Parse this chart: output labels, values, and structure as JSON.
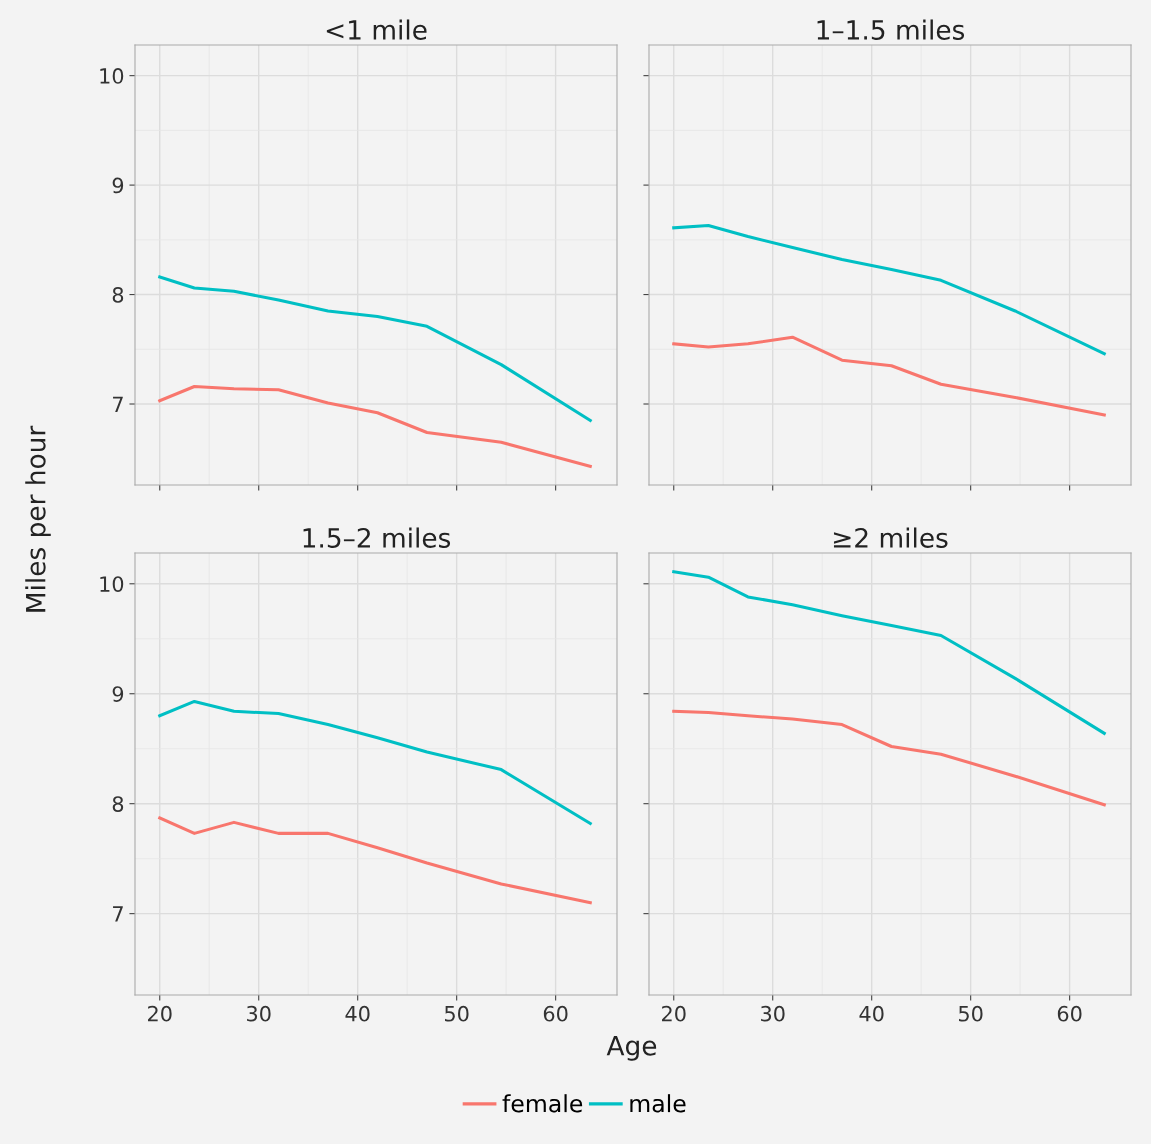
{
  "chart_data": [
    {
      "type": "line",
      "title": "<1 mile",
      "ylabel": "Miles per hour",
      "legend": "bottom",
      "grid": true,
      "tick_labels": "y",
      "xlim": [
        17.5,
        66.2
      ],
      "ylim": [
        6.26,
        10.28
      ],
      "xticks": [
        20,
        30,
        40,
        50,
        60
      ],
      "yticks": [
        7,
        8,
        9,
        10
      ],
      "x": [
        20,
        23.5,
        27.5,
        32,
        37,
        42,
        47,
        54.5,
        63.5
      ],
      "series": [
        {
          "name": "female",
          "color": "#f8766d",
          "values": [
            7.03,
            7.16,
            7.14,
            7.13,
            7.01,
            6.92,
            6.74,
            6.65,
            6.43
          ]
        },
        {
          "name": "male",
          "color": "#00bfc4",
          "values": [
            8.16,
            8.06,
            8.03,
            7.95,
            7.85,
            7.8,
            7.71,
            7.36,
            6.85
          ]
        }
      ]
    },
    {
      "type": "line",
      "title": "1–1.5 miles",
      "grid": true,
      "tick_labels": false,
      "xlim": [
        17.5,
        66.2
      ],
      "ylim": [
        6.26,
        10.28
      ],
      "xticks": [
        20,
        30,
        40,
        50,
        60
      ],
      "yticks": [
        7,
        8,
        9,
        10
      ],
      "x": [
        20,
        23.5,
        27.5,
        32,
        37,
        42,
        47,
        54.5,
        63.5
      ],
      "series": [
        {
          "name": "female",
          "color": "#f8766d",
          "values": [
            7.55,
            7.52,
            7.55,
            7.61,
            7.4,
            7.35,
            7.18,
            7.06,
            6.9
          ]
        },
        {
          "name": "male",
          "color": "#00bfc4",
          "values": [
            8.61,
            8.63,
            8.53,
            8.43,
            8.32,
            8.23,
            8.13,
            7.85,
            7.46
          ]
        }
      ]
    },
    {
      "type": "line",
      "title": "1.5–2 miles",
      "xlabel": "Age",
      "grid": true,
      "xlim": [
        17.5,
        66.2
      ],
      "ylim": [
        6.26,
        10.28
      ],
      "xticks": [
        20,
        30,
        40,
        50,
        60
      ],
      "yticks": [
        7,
        8,
        9,
        10
      ],
      "x": [
        20,
        23.5,
        27.5,
        32,
        37,
        42,
        47,
        54.5,
        63.5
      ],
      "series": [
        {
          "name": "female",
          "color": "#f8766d",
          "values": [
            7.87,
            7.73,
            7.83,
            7.73,
            7.73,
            7.6,
            7.46,
            7.27,
            7.1
          ]
        },
        {
          "name": "male",
          "color": "#00bfc4",
          "values": [
            8.8,
            8.93,
            8.84,
            8.82,
            8.72,
            8.6,
            8.47,
            8.31,
            7.82
          ]
        }
      ]
    },
    {
      "type": "line",
      "title": "≥2 miles",
      "grid": true,
      "tick_labels": "x",
      "xlim": [
        17.5,
        66.2
      ],
      "ylim": [
        6.26,
        10.28
      ],
      "xticks": [
        20,
        30,
        40,
        50,
        60
      ],
      "yticks": [
        7,
        8,
        9,
        10
      ],
      "x": [
        20,
        23.5,
        27.5,
        32,
        37,
        42,
        47,
        54.5,
        63.5
      ],
      "series": [
        {
          "name": "female",
          "color": "#f8766d",
          "values": [
            8.84,
            8.83,
            8.8,
            8.77,
            8.72,
            8.52,
            8.45,
            8.25,
            7.99
          ]
        },
        {
          "name": "male",
          "color": "#00bfc4",
          "values": [
            10.11,
            10.06,
            9.88,
            9.81,
            9.71,
            9.62,
            9.53,
            9.14,
            8.64
          ]
        }
      ]
    }
  ]
}
